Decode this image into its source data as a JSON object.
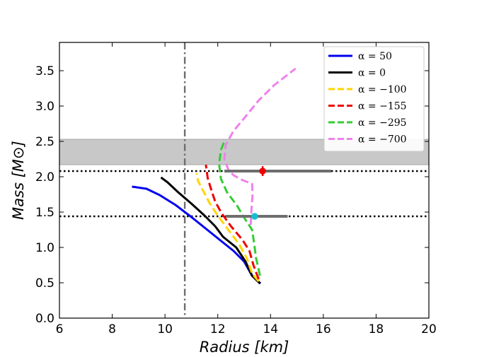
{
  "chart_data": {
    "type": "line",
    "title": "",
    "xlabel": "Radius [km]",
    "ylabel": "Mass [M⊙]",
    "xlim": [
      6,
      20
    ],
    "ylim": [
      0.0,
      3.9
    ],
    "xticks": [
      6,
      8,
      10,
      12,
      14,
      16,
      18,
      20
    ],
    "yticks": [
      0.0,
      0.5,
      1.0,
      1.5,
      2.0,
      2.5,
      3.0,
      3.5
    ],
    "ytick_labels": [
      "0.0",
      "0.5",
      "1.0",
      "1.5",
      "2.0",
      "2.5",
      "3.0",
      "3.5"
    ],
    "legend_position": "top-right",
    "series": [
      {
        "name": "α = 50",
        "color": "#0000ee",
        "dash": "solid",
        "points": [
          [
            13.62,
            0.49
          ],
          [
            13.3,
            0.6
          ],
          [
            13.0,
            0.8
          ],
          [
            12.6,
            0.95
          ],
          [
            12.1,
            1.1
          ],
          [
            11.6,
            1.25
          ],
          [
            11.0,
            1.43
          ],
          [
            10.4,
            1.6
          ],
          [
            9.8,
            1.74
          ],
          [
            9.3,
            1.83
          ],
          [
            8.75,
            1.86
          ]
        ]
      },
      {
        "name": "α = 0",
        "color": "#000000",
        "dash": "solid",
        "points": [
          [
            13.6,
            0.49
          ],
          [
            13.3,
            0.6
          ],
          [
            13.05,
            0.8
          ],
          [
            12.7,
            1.0
          ],
          [
            12.2,
            1.15
          ],
          [
            11.9,
            1.3
          ],
          [
            11.5,
            1.45
          ],
          [
            11.0,
            1.62
          ],
          [
            10.5,
            1.78
          ],
          [
            10.1,
            1.92
          ],
          [
            9.85,
            1.99
          ]
        ]
      },
      {
        "name": "α = −100",
        "color": "#ffd500",
        "dash": "dashed",
        "points": [
          [
            13.55,
            0.52
          ],
          [
            13.3,
            0.63
          ],
          [
            13.1,
            0.85
          ],
          [
            12.8,
            1.05
          ],
          [
            12.4,
            1.25
          ],
          [
            12.0,
            1.45
          ],
          [
            11.7,
            1.62
          ],
          [
            11.45,
            1.8
          ],
          [
            11.25,
            1.94
          ],
          [
            11.2,
            2.05
          ]
        ]
      },
      {
        "name": "α = −155",
        "color": "#ee0000",
        "dash": "dashed",
        "points": [
          [
            13.55,
            0.55
          ],
          [
            13.35,
            0.75
          ],
          [
            13.2,
            0.95
          ],
          [
            12.95,
            1.1
          ],
          [
            12.5,
            1.3
          ],
          [
            12.15,
            1.48
          ],
          [
            11.9,
            1.65
          ],
          [
            11.75,
            1.82
          ],
          [
            11.62,
            1.98
          ],
          [
            11.55,
            2.17
          ]
        ]
      },
      {
        "name": "α = −295",
        "color": "#33cc33",
        "dash": "dashed",
        "points": [
          [
            13.6,
            0.6
          ],
          [
            13.45,
            0.85
          ],
          [
            13.38,
            1.05
          ],
          [
            13.3,
            1.25
          ],
          [
            12.95,
            1.45
          ],
          [
            12.75,
            1.58
          ],
          [
            12.35,
            1.78
          ],
          [
            12.12,
            1.97
          ],
          [
            12.05,
            2.18
          ],
          [
            12.12,
            2.38
          ],
          [
            12.28,
            2.53
          ]
        ]
      },
      {
        "name": "α = −700",
        "color": "#ee82ee",
        "dash": "dashed",
        "points": [
          [
            13.25,
            1.32
          ],
          [
            13.28,
            1.55
          ],
          [
            13.32,
            1.75
          ],
          [
            13.3,
            1.9
          ],
          [
            12.95,
            1.95
          ],
          [
            12.6,
            2.02
          ],
          [
            12.4,
            2.1
          ],
          [
            12.25,
            2.25
          ],
          [
            12.3,
            2.45
          ],
          [
            12.6,
            2.65
          ],
          [
            13.05,
            2.85
          ],
          [
            13.55,
            3.08
          ],
          [
            14.15,
            3.3
          ],
          [
            14.95,
            3.53
          ]
        ]
      }
    ],
    "reference_lines": {
      "vertical_dashdot_x": 10.75,
      "horizontal_dotted_y": [
        2.08,
        1.44
      ]
    },
    "shaded_band": {
      "ymin": 2.17,
      "ymax": 2.53
    },
    "measurements": [
      {
        "name": "red-point",
        "x": 13.7,
        "y": 2.08,
        "xerr_low": 1.45,
        "xerr_high": 2.6,
        "yerr": 0.07,
        "color": "#ee0000"
      },
      {
        "name": "cyan-point",
        "x": 13.4,
        "y": 1.44,
        "xerr_low": 1.1,
        "xerr_high": 1.25,
        "yerr": 0.0,
        "color": "#17becf"
      }
    ]
  }
}
